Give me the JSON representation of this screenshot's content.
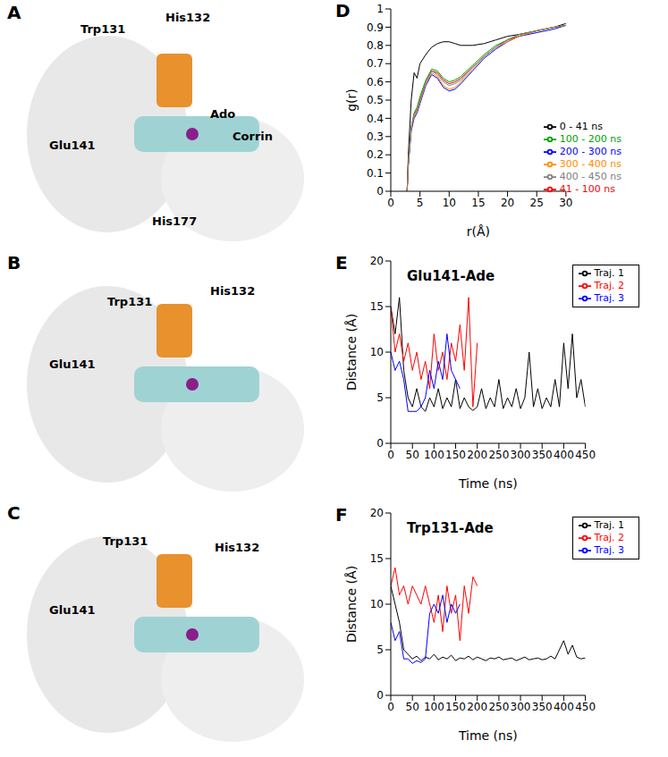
{
  "panels": [
    {
      "label": "A",
      "annotations": [
        "Trp131",
        "His132",
        "Ado",
        "Glu141",
        "Corrin",
        "His177"
      ]
    },
    {
      "label": "B",
      "annotations": [
        "Trp131",
        "His132",
        "Glu141"
      ]
    },
    {
      "label": "C",
      "annotations": [
        "Trp131",
        "His132",
        "Glu141"
      ]
    }
  ],
  "chart_data": [
    {
      "panel": "D",
      "type": "line",
      "x_label": "r(Å)",
      "y_label": "g(r)",
      "xlim": [
        0,
        30
      ],
      "xticks": [
        0,
        5,
        10,
        15,
        20,
        25,
        30
      ],
      "ylim": [
        0,
        1
      ],
      "yticks": [
        0,
        0.1,
        0.2,
        0.3,
        0.4,
        0.5,
        0.6,
        0.7,
        0.8,
        0.9,
        1
      ],
      "legend": "center right",
      "x": [
        2.8,
        3,
        3.5,
        4,
        4.5,
        5,
        6,
        7,
        8,
        9,
        10,
        11,
        12,
        14,
        16,
        18,
        20,
        22,
        25,
        28,
        30
      ],
      "series": [
        {
          "name": "0 - 41 ns",
          "color": "#000000",
          "values": [
            0,
            0.2,
            0.5,
            0.65,
            0.62,
            0.7,
            0.75,
            0.79,
            0.81,
            0.82,
            0.82,
            0.81,
            0.8,
            0.8,
            0.81,
            0.83,
            0.85,
            0.86,
            0.88,
            0.9,
            0.92
          ]
        },
        {
          "name": "41 - 100 ns",
          "color": "#ff0000",
          "values": [
            0,
            0.15,
            0.35,
            0.42,
            0.45,
            0.5,
            0.6,
            0.66,
            0.65,
            0.61,
            0.59,
            0.6,
            0.62,
            0.68,
            0.74,
            0.79,
            0.83,
            0.85,
            0.88,
            0.9,
            0.91
          ]
        },
        {
          "name": "100 - 200 ns",
          "color": "#00a000",
          "values": [
            0,
            0.15,
            0.35,
            0.43,
            0.46,
            0.52,
            0.61,
            0.67,
            0.66,
            0.62,
            0.6,
            0.61,
            0.63,
            0.69,
            0.75,
            0.8,
            0.83,
            0.86,
            0.88,
            0.9,
            0.91
          ]
        },
        {
          "name": "200 - 300 ns",
          "color": "#0000ff",
          "values": [
            0,
            0.14,
            0.33,
            0.4,
            0.43,
            0.48,
            0.58,
            0.64,
            0.62,
            0.57,
            0.55,
            0.56,
            0.59,
            0.66,
            0.73,
            0.78,
            0.82,
            0.85,
            0.87,
            0.89,
            0.91
          ]
        },
        {
          "name": "300 - 400 ns",
          "color": "#ff8c00",
          "values": [
            0,
            0.15,
            0.34,
            0.41,
            0.44,
            0.49,
            0.59,
            0.65,
            0.63,
            0.58,
            0.56,
            0.57,
            0.6,
            0.67,
            0.74,
            0.79,
            0.82,
            0.85,
            0.88,
            0.9,
            0.91
          ]
        },
        {
          "name": "400 - 450 ns",
          "color": "#808080",
          "values": [
            0,
            0.15,
            0.35,
            0.42,
            0.45,
            0.5,
            0.6,
            0.66,
            0.64,
            0.6,
            0.58,
            0.59,
            0.61,
            0.68,
            0.74,
            0.79,
            0.83,
            0.86,
            0.88,
            0.9,
            0.91
          ]
        }
      ]
    },
    {
      "panel": "E",
      "type": "line",
      "title": "Glu141-Ade",
      "x_label": "Time (ns)",
      "y_label": "Distance (Å)",
      "xlim": [
        0,
        450
      ],
      "xticks": [
        0,
        50,
        100,
        150,
        200,
        250,
        300,
        350,
        400,
        450
      ],
      "ylim": [
        0,
        20
      ],
      "yticks": [
        0,
        5,
        10,
        15,
        20
      ],
      "legend": "upper right",
      "series": [
        {
          "name": "Traj. 1",
          "color": "#000000",
          "x": [
            0,
            10,
            20,
            30,
            40,
            50,
            60,
            70,
            80,
            90,
            100,
            110,
            120,
            130,
            140,
            150,
            160,
            170,
            180,
            190,
            200,
            210,
            220,
            230,
            240,
            250,
            260,
            270,
            280,
            290,
            300,
            310,
            320,
            330,
            340,
            350,
            360,
            370,
            380,
            390,
            400,
            410,
            420,
            430,
            440,
            450
          ],
          "values": [
            15,
            12,
            16,
            8,
            5,
            4,
            6,
            4,
            3.5,
            5,
            4,
            6,
            3.8,
            5,
            4,
            7,
            3.8,
            5,
            4,
            3.6,
            4,
            6,
            3.8,
            5,
            4,
            7,
            3.8,
            5,
            4,
            6,
            3.8,
            5,
            10,
            4,
            6,
            3.8,
            5,
            4,
            7,
            4,
            11,
            6,
            12,
            5,
            7,
            4
          ]
        },
        {
          "name": "Traj. 2",
          "color": "#ff0000",
          "x": [
            0,
            10,
            20,
            30,
            40,
            50,
            60,
            70,
            80,
            90,
            100,
            110,
            120,
            130,
            140,
            150,
            160,
            170,
            180,
            190,
            200
          ],
          "values": [
            15,
            10,
            12,
            9,
            11,
            8,
            10,
            7,
            9,
            6,
            12,
            8,
            10,
            7,
            11,
            9,
            13,
            8,
            16,
            4,
            11
          ]
        },
        {
          "name": "Traj. 3",
          "color": "#0000ff",
          "x": [
            0,
            10,
            20,
            30,
            40,
            50,
            60,
            70,
            80,
            90,
            100,
            110,
            120,
            130,
            140,
            150,
            160
          ],
          "values": [
            10,
            8,
            9,
            7,
            3.5,
            3.5,
            3.5,
            4,
            5,
            8,
            6,
            9,
            7,
            12,
            8,
            7,
            6
          ]
        }
      ]
    },
    {
      "panel": "F",
      "type": "line",
      "title": "Trp131-Ade",
      "x_label": "Time (ns)",
      "y_label": "Distance (Å)",
      "xlim": [
        0,
        450
      ],
      "xticks": [
        0,
        50,
        100,
        150,
        200,
        250,
        300,
        350,
        400,
        450
      ],
      "ylim": [
        0,
        20
      ],
      "yticks": [
        0,
        5,
        10,
        15,
        20
      ],
      "legend": "upper right",
      "series": [
        {
          "name": "Traj. 1",
          "color": "#000000",
          "x": [
            0,
            10,
            20,
            30,
            40,
            50,
            60,
            70,
            80,
            90,
            100,
            110,
            120,
            130,
            140,
            150,
            160,
            170,
            180,
            190,
            200,
            210,
            220,
            230,
            240,
            250,
            260,
            270,
            280,
            290,
            300,
            310,
            320,
            330,
            340,
            350,
            360,
            370,
            380,
            390,
            400,
            410,
            420,
            430,
            440,
            450
          ],
          "values": [
            12,
            10,
            8,
            5,
            4.5,
            4,
            4.3,
            3.8,
            4.2,
            4,
            4.5,
            3.9,
            4.2,
            4,
            4.4,
            3.8,
            4.1,
            4,
            4.3,
            3.9,
            4.2,
            4,
            3.8,
            4.1,
            4,
            4.2,
            3.9,
            4,
            4.1,
            3.8,
            4,
            4.2,
            3.9,
            4,
            4.1,
            3.9,
            4,
            4.3,
            4,
            5,
            6,
            4.5,
            5.5,
            4.2,
            4,
            4.1
          ]
        },
        {
          "name": "Traj. 2",
          "color": "#ff0000",
          "x": [
            0,
            10,
            20,
            30,
            40,
            50,
            60,
            70,
            80,
            90,
            100,
            110,
            120,
            130,
            140,
            150,
            160,
            170,
            180,
            190,
            200
          ],
          "values": [
            12,
            14,
            11,
            12,
            10,
            12,
            11,
            10,
            12,
            10,
            8,
            11,
            7,
            12,
            9,
            11,
            6,
            12,
            9,
            13,
            12
          ]
        },
        {
          "name": "Traj. 3",
          "color": "#0000ff",
          "x": [
            0,
            10,
            20,
            30,
            40,
            50,
            60,
            70,
            80,
            90,
            100,
            110,
            120,
            130,
            140,
            150,
            160
          ],
          "values": [
            8,
            6,
            7,
            4,
            4,
            3.5,
            3.8,
            3.6,
            4,
            9,
            10,
            9,
            11,
            8,
            10,
            9,
            10
          ]
        }
      ]
    }
  ]
}
